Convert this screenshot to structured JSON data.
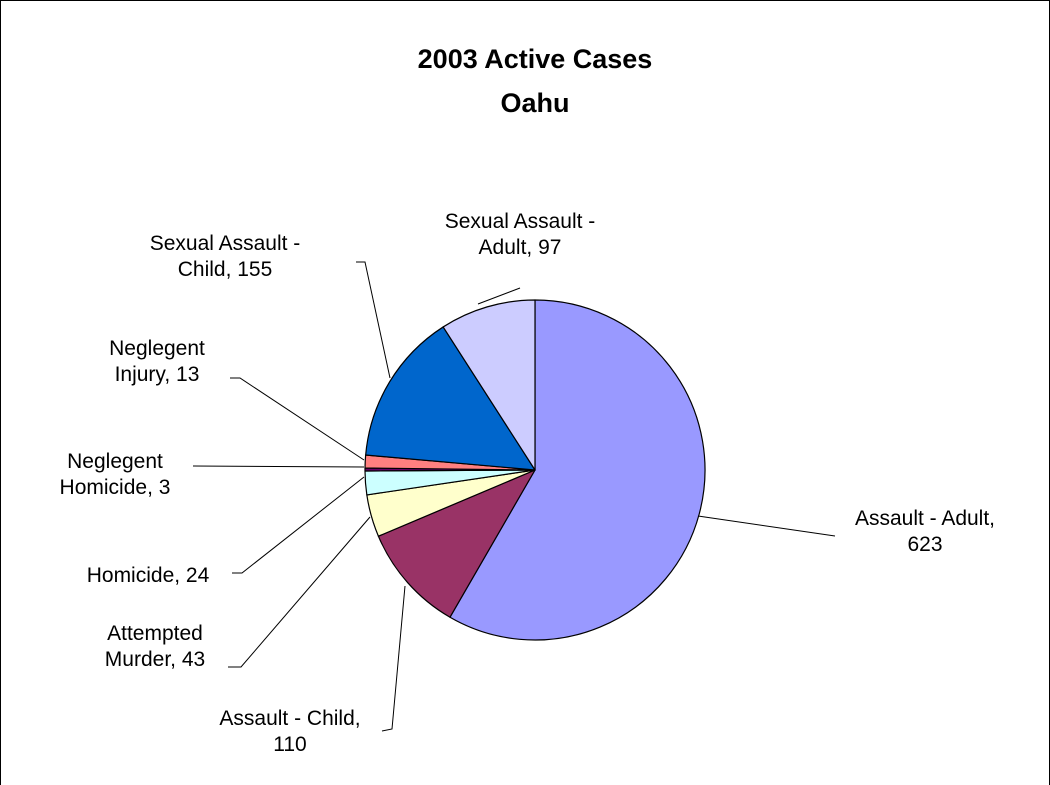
{
  "chart_data": {
    "type": "pie",
    "title_lines": [
      "2003 Active Cases",
      "Oahu"
    ],
    "legend": "none",
    "start_angle_deg": 0,
    "direction": "clockwise",
    "slices": [
      {
        "name": "Assault - Adult",
        "value": 623,
        "color": "#9999ff",
        "label_lines": [
          "Assault - Adult,",
          "623"
        ]
      },
      {
        "name": "Assault - Child",
        "value": 110,
        "color": "#993366",
        "label_lines": [
          "Assault - Child,",
          "110"
        ]
      },
      {
        "name": "Attempted Murder",
        "value": 43,
        "color": "#ffffcc",
        "label_lines": [
          "Attempted",
          "Murder, 43"
        ]
      },
      {
        "name": "Homicide",
        "value": 24,
        "color": "#ccffff",
        "label_lines": [
          "Homicide, 24"
        ]
      },
      {
        "name": "Neglegent Homicide",
        "value": 3,
        "color": "#660066",
        "label_lines": [
          "Neglegent",
          "Homicide, 3"
        ]
      },
      {
        "name": "Neglegent Injury",
        "value": 13,
        "color": "#ff8080",
        "label_lines": [
          "Neglegent",
          "Injury, 13"
        ]
      },
      {
        "name": "Sexual Assault - Child",
        "value": 155,
        "color": "#0066cc",
        "label_lines": [
          "Sexual Assault -",
          "Child, 155"
        ]
      },
      {
        "name": "Sexual Assault - Adult",
        "value": 97,
        "color": "#ccccff",
        "label_lines": [
          "Sexual Assault -",
          "Adult, 97"
        ]
      }
    ]
  }
}
